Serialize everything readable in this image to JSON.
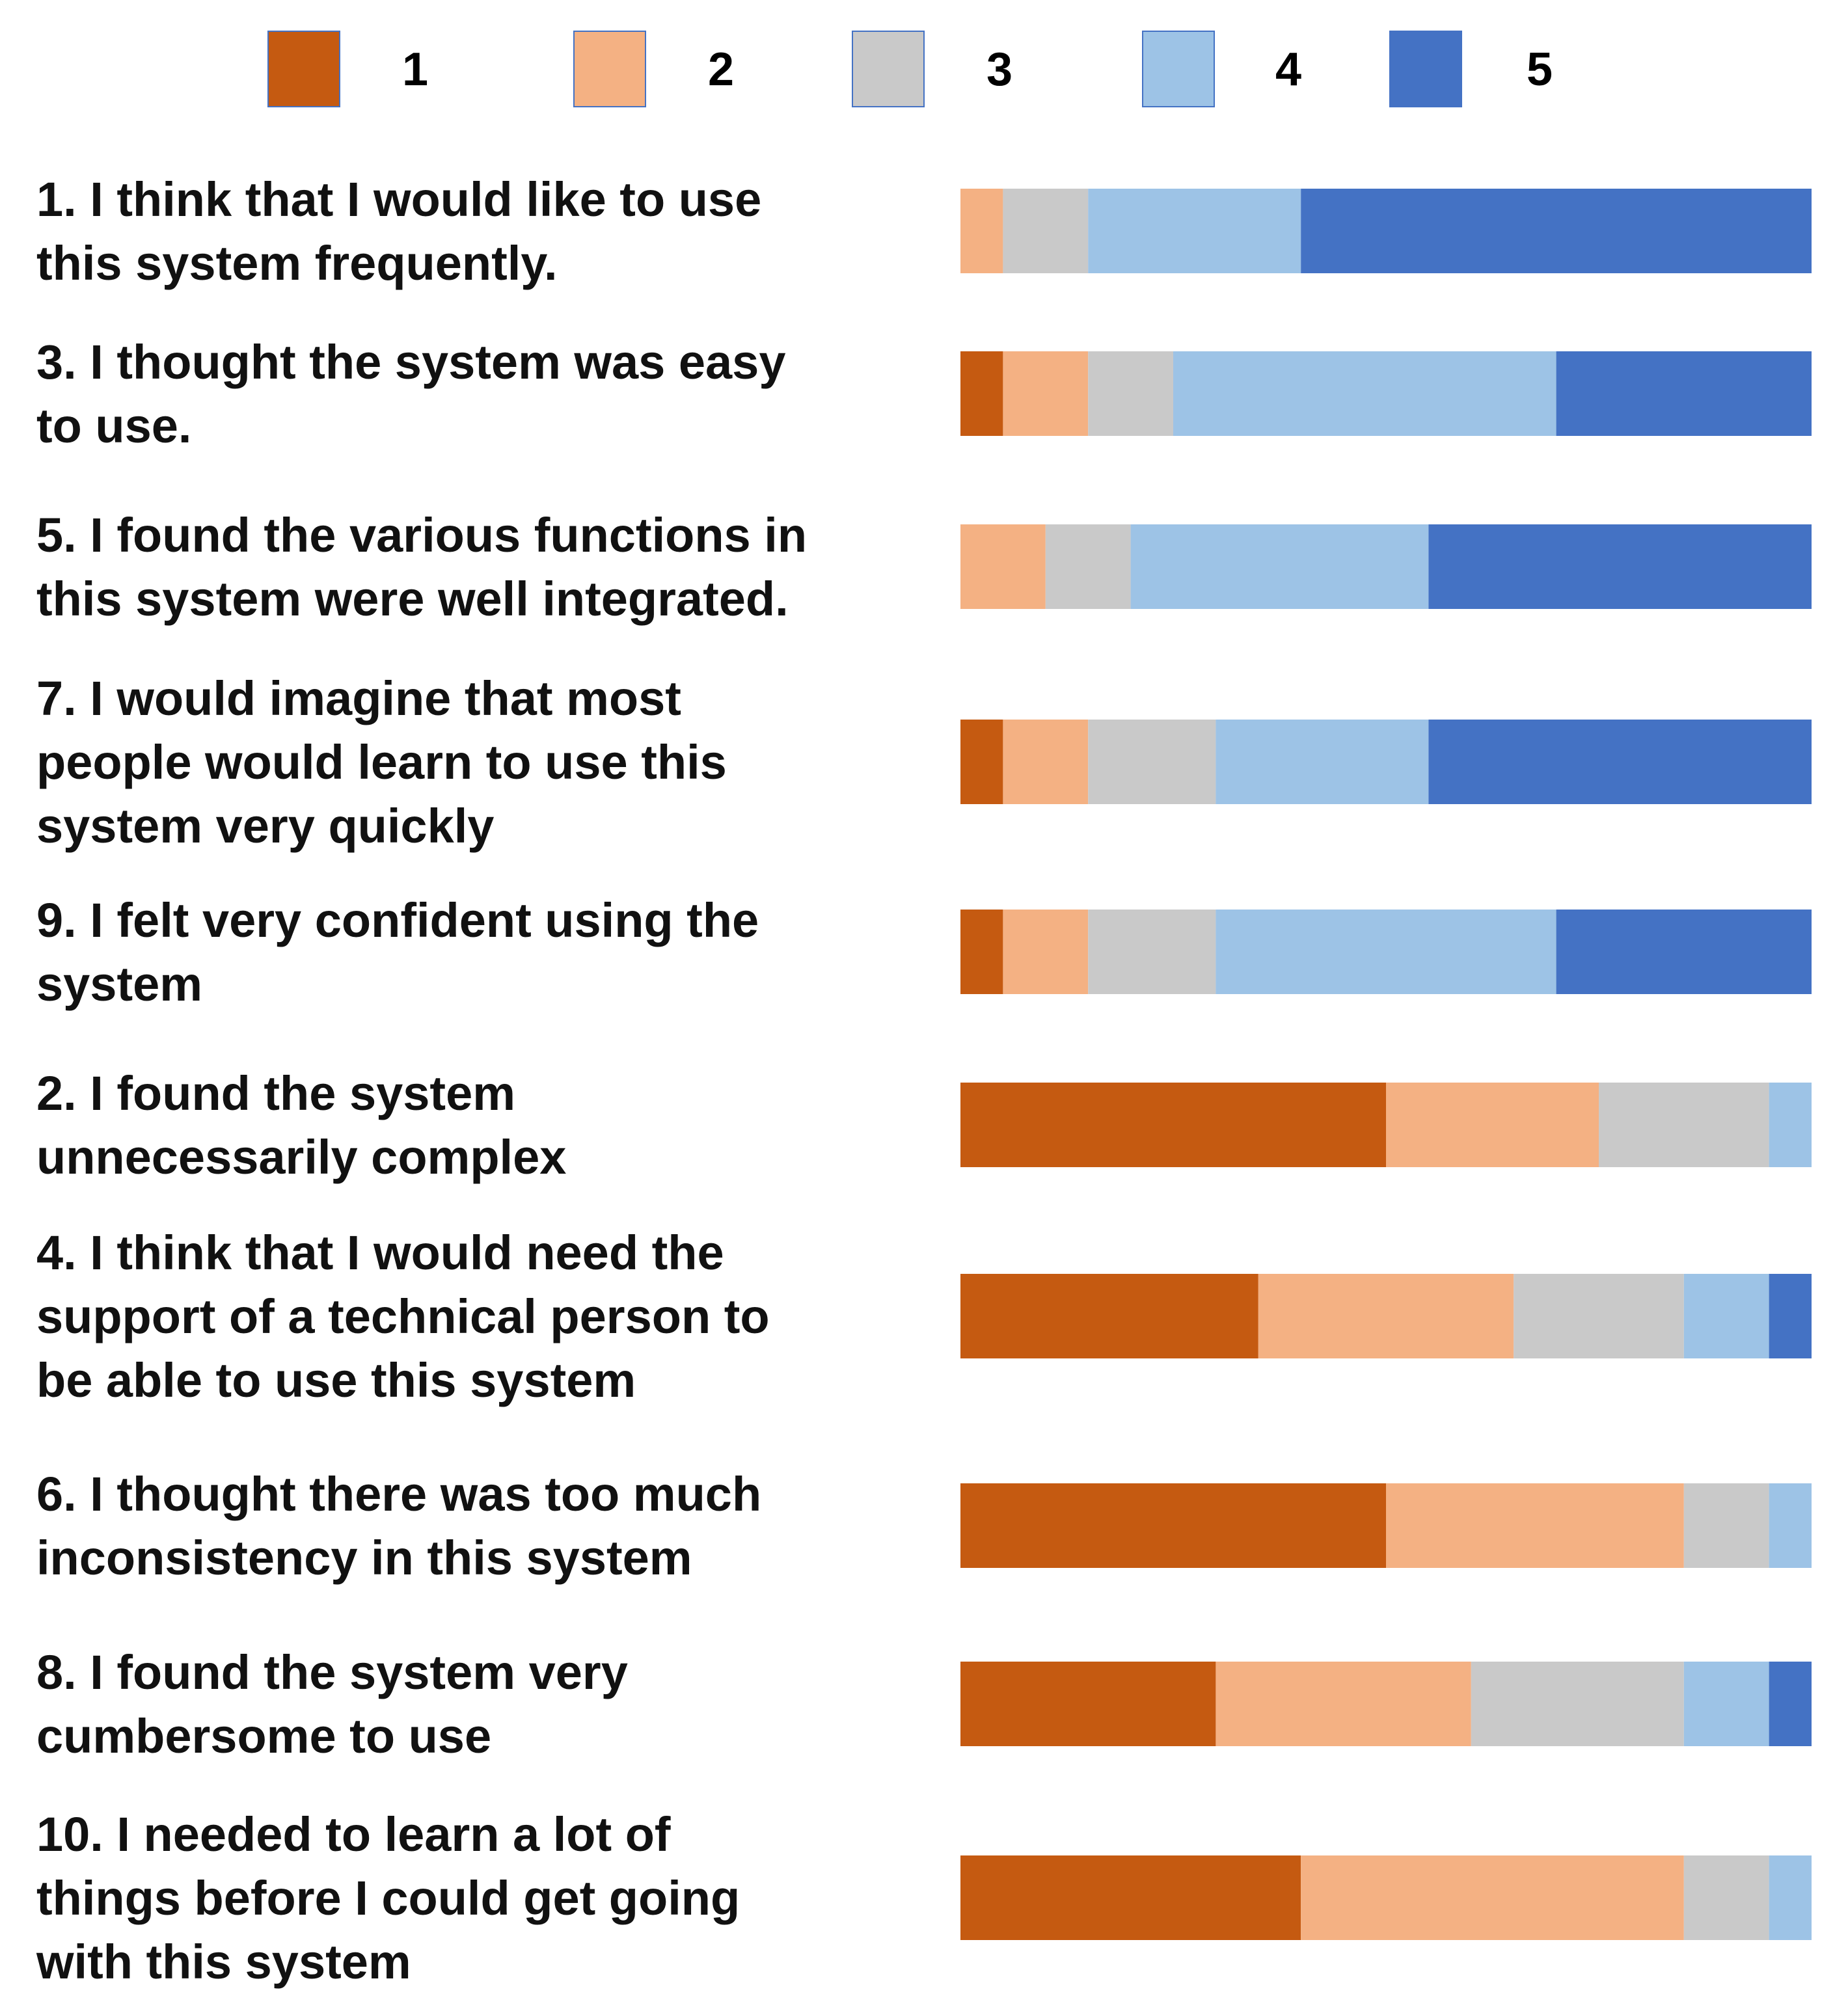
{
  "chart_data": {
    "type": "bar",
    "orientation": "horizontal",
    "stacked": "100%",
    "legend": {
      "placement": "top",
      "entries": [
        "1",
        "2",
        "3",
        "4",
        "5"
      ]
    },
    "colors": [
      "#C55A11",
      "#F4B183",
      "#C9C9C9",
      "#9DC3E6",
      "#4472C4"
    ],
    "unit": "percent of respondents",
    "categories": [
      [
        "1. I think that I would like to use",
        "this system frequently."
      ],
      [
        "3. I thought the system was easy",
        "to use."
      ],
      [
        "5. I found the various functions in",
        "this system were well integrated."
      ],
      [
        "7. I would imagine that most",
        "people would learn to use this",
        "system very quickly"
      ],
      [
        "9. I felt very confident using the",
        "system"
      ],
      [
        "2. I found the system",
        "unnecessarily complex"
      ],
      [
        "4. I think that I would need the",
        "support of a technical person to",
        "be able to use this system"
      ],
      [
        "6. I thought there was too much",
        "inconsistency in this system"
      ],
      [
        "8. I found the system very",
        "cumbersome to use"
      ],
      [
        "10. I needed to learn a lot of",
        "things before I could get going",
        "with this system"
      ]
    ],
    "series": [
      {
        "name": "1",
        "values": [
          0,
          5,
          0,
          5,
          5,
          50,
          35,
          50,
          30,
          40
        ]
      },
      {
        "name": "2",
        "values": [
          5,
          10,
          10,
          10,
          10,
          25,
          30,
          35,
          30,
          45
        ]
      },
      {
        "name": "3",
        "values": [
          10,
          10,
          10,
          15,
          15,
          20,
          20,
          10,
          25,
          10
        ]
      },
      {
        "name": "4",
        "values": [
          25,
          45,
          35,
          25,
          40,
          5,
          10,
          5,
          10,
          5
        ]
      },
      {
        "name": "5",
        "values": [
          60,
          30,
          45,
          45,
          30,
          0,
          5,
          0,
          5,
          0
        ]
      }
    ],
    "xlim": [
      0,
      100
    ],
    "title": "",
    "xlabel": "",
    "ylabel": ""
  }
}
